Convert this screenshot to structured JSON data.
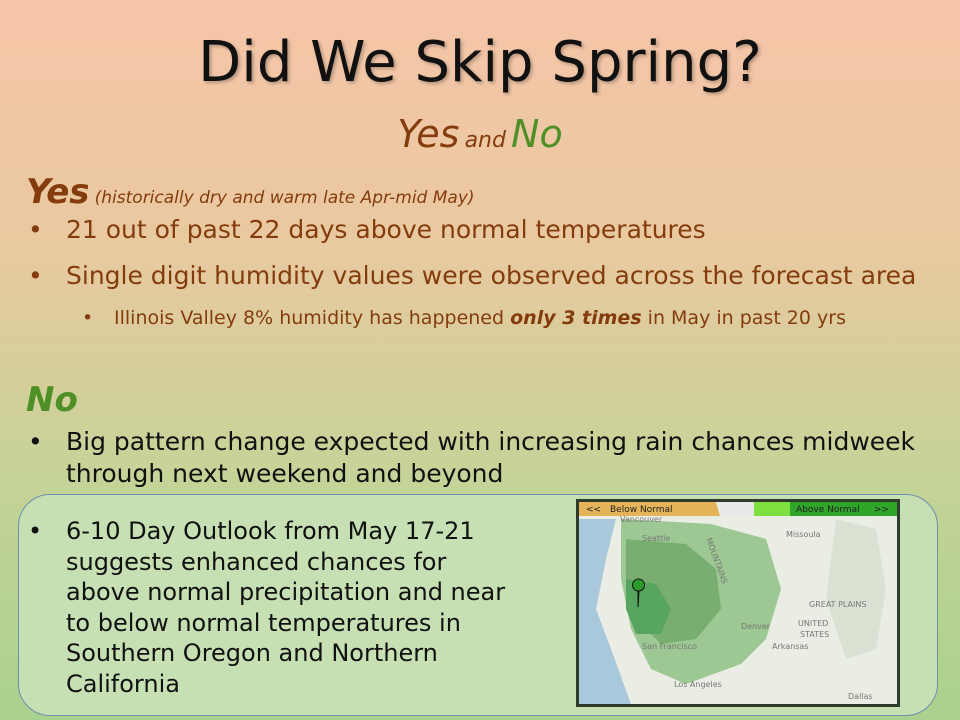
{
  "title": "Did We Skip Spring?",
  "subtitle": {
    "yes": "Yes",
    "and": "and",
    "no": "No"
  },
  "yes_section": {
    "heading": "Yes",
    "note": "(historically dry and warm late Apr-mid May)",
    "bullets": [
      "21 out of past 22 days above normal temperatures",
      "Single digit humidity values were observed across the forecast area"
    ],
    "sub_bullet": [
      "Illinois Valley 8% humidity has happened",
      "only 3 times",
      "in May in past 20 yrs"
    ]
  },
  "no_section": {
    "heading": "No",
    "bullet": "Big pattern change expected with increasing rain chances midweek through next weekend and beyond"
  },
  "outlook_box": {
    "text": "6-10 Day Outlook from May 17-21 suggests enhanced chances for above normal precipitation and near to below normal temperatures in Southern Oregon and Northern California"
  },
  "map": {
    "legend": {
      "left_arrow": "<<",
      "below": "Below Normal",
      "above": "Above Normal",
      "right_arrow": ">>"
    },
    "labels": [
      "Vancouver",
      "Seattle",
      "Missoula",
      "MOUNTAINS",
      "GREAT PLAINS",
      "UNITED",
      "STATES",
      "Denver",
      "San Francisco",
      "Los Angeles",
      "Dallas",
      "Arkansas"
    ]
  }
}
